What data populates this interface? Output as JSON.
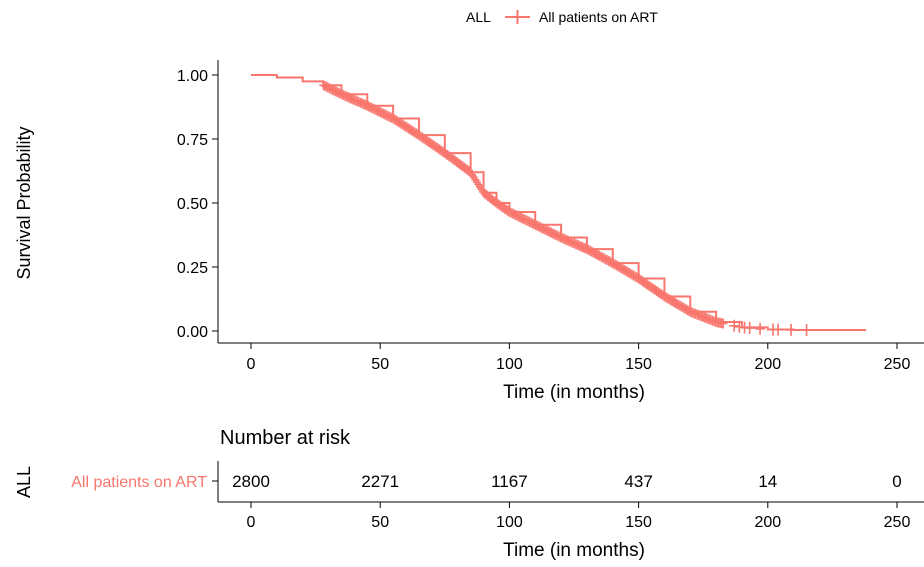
{
  "colors": {
    "series": "#f8766d",
    "axis": "#000000",
    "background": "#ffffff"
  },
  "legend": {
    "title": "ALL",
    "items": [
      {
        "label": "All patients on ART"
      }
    ],
    "position": "top"
  },
  "chart_data": [
    {
      "type": "line",
      "subtype": "kaplan-meier survival curve with censor marks",
      "title": "",
      "xlabel": "Time (in months)",
      "ylabel": "Survival Probability",
      "xlim": [
        0,
        250
      ],
      "ylim": [
        0,
        1
      ],
      "xticks": [
        0,
        50,
        100,
        150,
        200,
        250
      ],
      "yticks": [
        "0.00",
        "0.25",
        "0.50",
        "0.75",
        "1.00"
      ],
      "grid": false,
      "series": [
        {
          "name": "All patients on ART",
          "x": [
            0,
            10,
            20,
            28,
            35,
            45,
            55,
            65,
            75,
            85,
            90,
            95,
            100,
            110,
            120,
            130,
            140,
            150,
            160,
            170,
            180,
            190,
            200,
            210,
            220,
            238
          ],
          "y": [
            1.0,
            0.99,
            0.975,
            0.96,
            0.925,
            0.88,
            0.83,
            0.765,
            0.695,
            0.62,
            0.54,
            0.5,
            0.465,
            0.415,
            0.365,
            0.32,
            0.265,
            0.205,
            0.135,
            0.075,
            0.035,
            0.014,
            0.006,
            0.004,
            0.004,
            0.004
          ]
        }
      ],
      "censor_marks_x_range": [
        28,
        215
      ]
    },
    {
      "type": "table",
      "title": "Number at risk",
      "xlabel": "Time (in months)",
      "ylabel": "ALL",
      "row_label": "All patients on ART",
      "xticks": [
        0,
        50,
        100,
        150,
        200,
        250
      ],
      "values": [
        2800,
        2271,
        1167,
        437,
        14,
        0
      ]
    }
  ]
}
